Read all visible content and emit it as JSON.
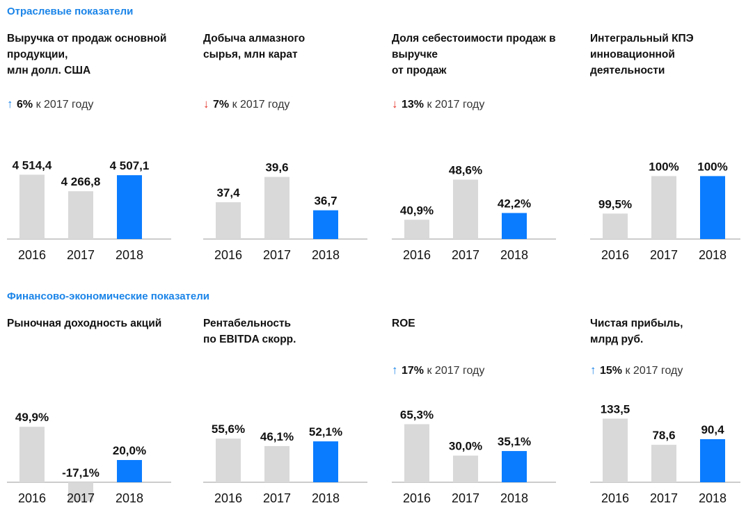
{
  "sections": [
    {
      "title": "Отраслевые показатели"
    },
    {
      "title": "Финансово-экономические показатели"
    }
  ],
  "colors": {
    "accent": "#0a7cff",
    "grey": "#d9d9d9",
    "up": "#1a84e8",
    "down": "#e4332a",
    "section": "#1a84e8"
  },
  "panels": [
    {
      "title": "Выручка от продаж основной\nпродукции,\nмлн долл. США",
      "change": {
        "direction": "up",
        "pct": "6%",
        "text": " к 2017 году"
      }
    },
    {
      "title": "Добыча алмазного\nсырья, млн карат",
      "change": {
        "direction": "down",
        "pct": "7%",
        "text": " к 2017 году"
      }
    },
    {
      "title": "Доля себестоимости продаж в\nвыручке\nот продаж",
      "change": {
        "direction": "down",
        "pct": "13%",
        "text": " к 2017 году"
      }
    },
    {
      "title": "Интегральный КПЭ\nинновационной\nдеятельности",
      "change": null
    },
    {
      "title": "Рыночная доходность акций",
      "change": null
    },
    {
      "title": "Рентабельность\nпо EBITDA скорр.",
      "change": null
    },
    {
      "title": "ROE",
      "change": {
        "direction": "up",
        "pct": "17%",
        "text": " к 2017 году"
      }
    },
    {
      "title": "Чистая прибыль,\nмлрд руб.",
      "change": {
        "direction": "up",
        "pct": "15%",
        "text": " к 2017 году"
      }
    }
  ],
  "chart_data": [
    {
      "type": "bar",
      "categories": [
        "2016",
        "2017",
        "2018"
      ],
      "values": [
        4514.4,
        4266.8,
        4507.1
      ],
      "labels": [
        "4 514,4",
        "4 266,8",
        "4 507,1"
      ],
      "ylim": [
        3550,
        4550
      ],
      "highlight": 2
    },
    {
      "type": "bar",
      "categories": [
        "2016",
        "2017",
        "2018"
      ],
      "values": [
        37.4,
        39.6,
        36.7
      ],
      "labels": [
        "37,4",
        "39,6",
        "36,7"
      ],
      "ylim": [
        34.2,
        40
      ],
      "highlight": 2
    },
    {
      "type": "bar",
      "categories": [
        "2016",
        "2017",
        "2018"
      ],
      "values": [
        40.9,
        48.6,
        42.2
      ],
      "labels": [
        "40,9%",
        "48,6%",
        "42,2%"
      ],
      "ylim": [
        37.2,
        50
      ],
      "highlight": 2
    },
    {
      "type": "bar",
      "categories": [
        "2016",
        "2017",
        "2018"
      ],
      "values": [
        99.5,
        100,
        100
      ],
      "labels": [
        "99,5%",
        "100%",
        "100%"
      ],
      "ylim": [
        99.16,
        100.05
      ],
      "highlight": 2
    },
    {
      "type": "bar",
      "categories": [
        "2016",
        "2017",
        "2018"
      ],
      "values": [
        49.9,
        -17.1,
        20.0
      ],
      "labels": [
        "49,9%",
        "-17,1%",
        "20,0%"
      ],
      "ylim": [
        -30,
        60
      ],
      "highlight": 2
    },
    {
      "type": "bar",
      "categories": [
        "2016",
        "2017",
        "2018"
      ],
      "values": [
        55.6,
        46.1,
        52.1
      ],
      "labels": [
        "55,6%",
        "46,1%",
        "52,1%"
      ],
      "ylim": [
        0,
        85
      ],
      "highlight": 2
    },
    {
      "type": "bar",
      "categories": [
        "2016",
        "2017",
        "2018"
      ],
      "values": [
        65.3,
        30.0,
        35.1
      ],
      "labels": [
        "65,3%",
        "30,0%",
        "35,1%"
      ],
      "ylim": [
        0,
        75
      ],
      "highlight": 2
    },
    {
      "type": "bar",
      "categories": [
        "2016",
        "2017",
        "2018"
      ],
      "values": [
        133.5,
        78.6,
        90.4
      ],
      "labels": [
        "133,5",
        "78,6",
        "90,4"
      ],
      "ylim": [
        0,
        140
      ],
      "highlight": 2
    }
  ]
}
